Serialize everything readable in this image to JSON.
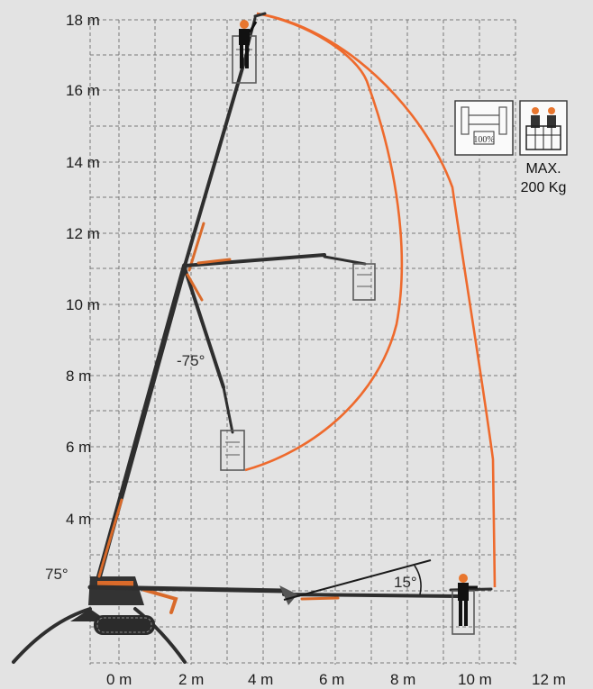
{
  "y_axis_labels": [
    "18 m",
    "16 m",
    "14 m",
    "12 m",
    "10 m",
    "8 m",
    "6 m",
    "4 m"
  ],
  "x_axis_labels": [
    "0 m",
    "2 m",
    "4 m",
    "6 m",
    "8 m",
    "10 m",
    "12 m"
  ],
  "angles": {
    "base": "75°",
    "jib_down": "-75°",
    "jib_low": "15°"
  },
  "badges": {
    "stabilizer_label": "100%",
    "max_line1": "MAX.",
    "max_line2": "200 Kg"
  },
  "colors": {
    "envelope": "#ee6a2d",
    "boom": "#2e2e2e",
    "background": "#e3e3e3"
  },
  "icons": [
    "person-icon",
    "stabilizer-icon",
    "two-persons-icon"
  ]
}
